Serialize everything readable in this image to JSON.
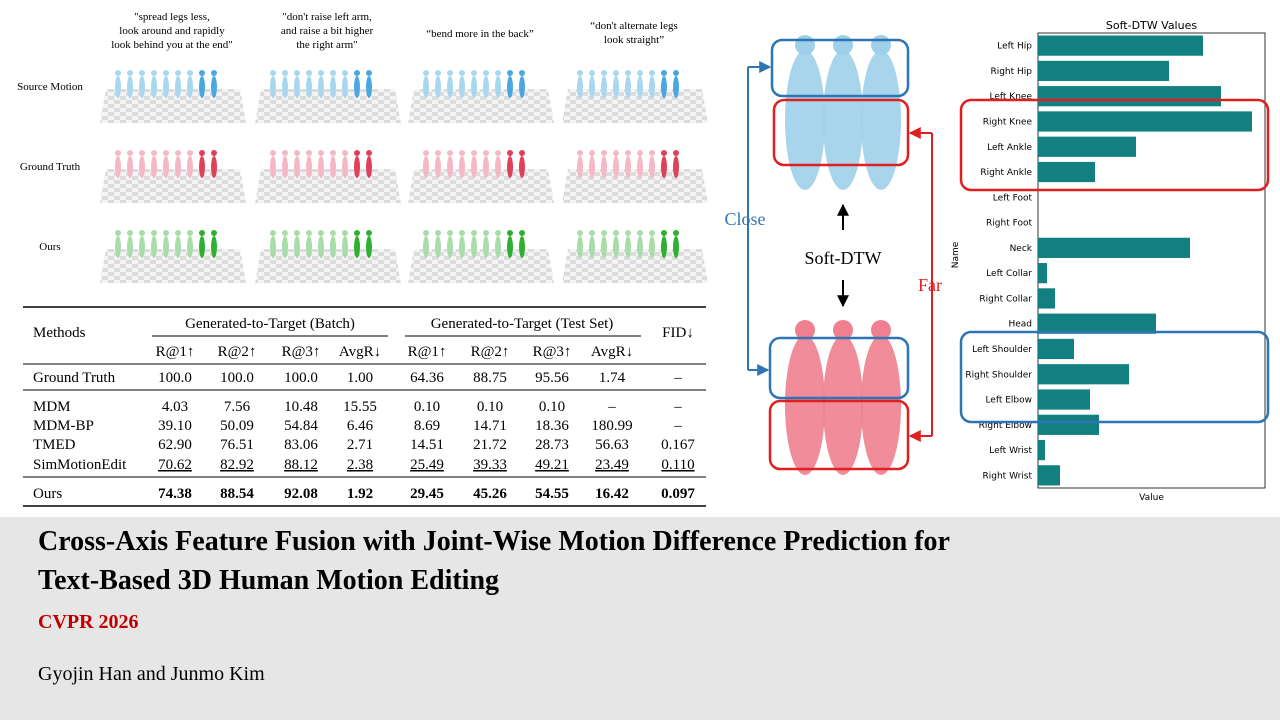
{
  "prompts": [
    [
      "\"spread legs less,",
      "look around and rapidly",
      "look behind you at the end\""
    ],
    [
      "\"don't raise left arm,",
      "and raise a bit higher",
      "the right arm\""
    ],
    [
      "“bend more in the back”"
    ],
    [
      "“don't alternate legs",
      "look straight”"
    ]
  ],
  "row_labels": [
    "Source Motion",
    "Ground Truth",
    "Ours"
  ],
  "table": {
    "methods_header": "Methods",
    "groups": [
      "Generated-to-Target (Batch)",
      "Generated-to-Target (Test Set)"
    ],
    "fid_header": "FID↓",
    "subheaders": [
      "R@1↑",
      "R@2↑",
      "R@3↑",
      "AvgR↓",
      "R@1↑",
      "R@2↑",
      "R@3↑",
      "AvgR↓"
    ],
    "rows": [
      [
        "Ground Truth",
        "100.0",
        "100.0",
        "100.0",
        "1.00",
        "64.36",
        "88.75",
        "95.56",
        "1.74",
        "–"
      ],
      [
        "MDM",
        "4.03",
        "7.56",
        "10.48",
        "15.55",
        "0.10",
        "0.10",
        "0.10",
        "–",
        "–"
      ],
      [
        "MDM-BP",
        "39.10",
        "50.09",
        "54.84",
        "6.46",
        "8.69",
        "14.71",
        "18.36",
        "180.99",
        "–"
      ],
      [
        "TMED",
        "62.90",
        "76.51",
        "83.06",
        "2.71",
        "14.51",
        "21.72",
        "28.73",
        "56.63",
        "0.167"
      ],
      [
        "SimMotionEdit",
        "70.62",
        "82.92",
        "88.12",
        "2.38",
        "25.49",
        "39.33",
        "49.21",
        "23.49",
        "0.110"
      ],
      [
        "Ours",
        "74.38",
        "88.54",
        "92.08",
        "1.92",
        "29.45",
        "45.26",
        "54.55",
        "16.42",
        "0.097"
      ]
    ]
  },
  "diagram": {
    "close": "Close",
    "far": "Far",
    "method": "Soft-DTW"
  },
  "chart_data": {
    "type": "barh",
    "title": "Soft-DTW Values",
    "xlabel": "Value",
    "ylabel": "Name",
    "color": "#128080",
    "categories": [
      "Left Hip",
      "Right Hip",
      "Left Knee",
      "Right Knee",
      "Left Ankle",
      "Right Ankle",
      "Left Foot",
      "Right Foot",
      "Neck",
      "Left Collar",
      "Right Collar",
      "Head",
      "Left Shoulder",
      "Right Shoulder",
      "Left Elbow",
      "Right Elbow",
      "Left Wrist",
      "Right Wrist"
    ],
    "values": [
      0.165,
      0.131,
      0.183,
      0.214,
      0.098,
      0.057,
      0,
      0,
      0.152,
      0.009,
      0.017,
      0.118,
      0.036,
      0.091,
      0.052,
      0.061,
      0.007,
      0.022
    ],
    "xlim": [
      0,
      0.227
    ]
  },
  "title": [
    "Cross-Axis Feature Fusion with Joint-Wise Motion Difference Prediction for",
    "Text-Based 3D Human Motion Editing"
  ],
  "venue": "CVPR 2026",
  "authors": "Gyojin Han and Junmo Kim"
}
